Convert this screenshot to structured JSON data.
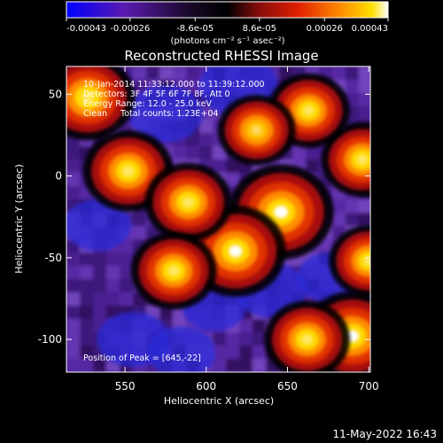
{
  "chart_data": {
    "type": "heatmap",
    "title": "Reconstructed RHESSI Image",
    "xlabel": "Heliocentric X (arcsec)",
    "ylabel": "Heliocentric Y (arcsec)",
    "xlim": [
      514,
      701
    ],
    "ylim": [
      -120,
      67
    ],
    "x_ticks": [
      550,
      600,
      650,
      700
    ],
    "y_ticks": [
      50,
      0,
      -50,
      -100
    ],
    "colorbar": {
      "min": -0.00043,
      "max": 0.00043,
      "tick_labels": [
        "-0.00043",
        "-0.00026",
        "-8.6e-05",
        "8.6e-05",
        "0.00026",
        "0.00043"
      ],
      "unit_label": "(photons cm⁻² s⁻¹ asec⁻²)",
      "colormap": [
        "#0000ff",
        "#7a1d9c",
        "#000000",
        "#c01010",
        "#ff7a00",
        "#ffe000",
        "#ffffff"
      ]
    },
    "annotations": [
      "10-Jan-2014 11:33:12.000 to 11:39:12.000",
      "Detectors: 3F 4F 5F 6F 7F 8F, Att 0",
      "Energy Range: 12.0 - 25.0 keV",
      "Clean     Total counts: 1.23E+04"
    ],
    "peak_label": "Position of Peak = [645,-22]",
    "peak": [
      645,
      -22
    ],
    "bright_sources": [
      {
        "x": 646,
        "y": -22,
        "value": 0.00043
      },
      {
        "x": 618,
        "y": -46,
        "value": 0.0004
      },
      {
        "x": 690,
        "y": -98,
        "value": 0.00039
      },
      {
        "x": 527,
        "y": 48,
        "value": 0.00036
      },
      {
        "x": 552,
        "y": 3,
        "value": 0.00033
      },
      {
        "x": 589,
        "y": -16,
        "value": 0.00031
      },
      {
        "x": 580,
        "y": -58,
        "value": 0.0003
      },
      {
        "x": 662,
        "y": -100,
        "value": 0.0003
      },
      {
        "x": 696,
        "y": 10,
        "value": 0.00028
      },
      {
        "x": 663,
        "y": 40,
        "value": 0.00028
      },
      {
        "x": 631,
        "y": 28,
        "value": 0.00025
      },
      {
        "x": 700,
        "y": -52,
        "value": 0.00026
      }
    ],
    "dark_regions": [
      {
        "x": 620,
        "y": 55,
        "value": -0.0004
      },
      {
        "x": 575,
        "y": 38,
        "value": -0.00036
      },
      {
        "x": 555,
        "y": -100,
        "value": -0.00034
      },
      {
        "x": 640,
        "y": -70,
        "value": -0.00033
      },
      {
        "x": 533,
        "y": -30,
        "value": -0.0003
      },
      {
        "x": 585,
        "y": -108,
        "value": -0.0003
      },
      {
        "x": 676,
        "y": -62,
        "value": -0.00028
      },
      {
        "x": 605,
        "y": -80,
        "value": -0.00027
      }
    ]
  },
  "footer": {
    "timestamp": "11-May-2022 16:43"
  }
}
